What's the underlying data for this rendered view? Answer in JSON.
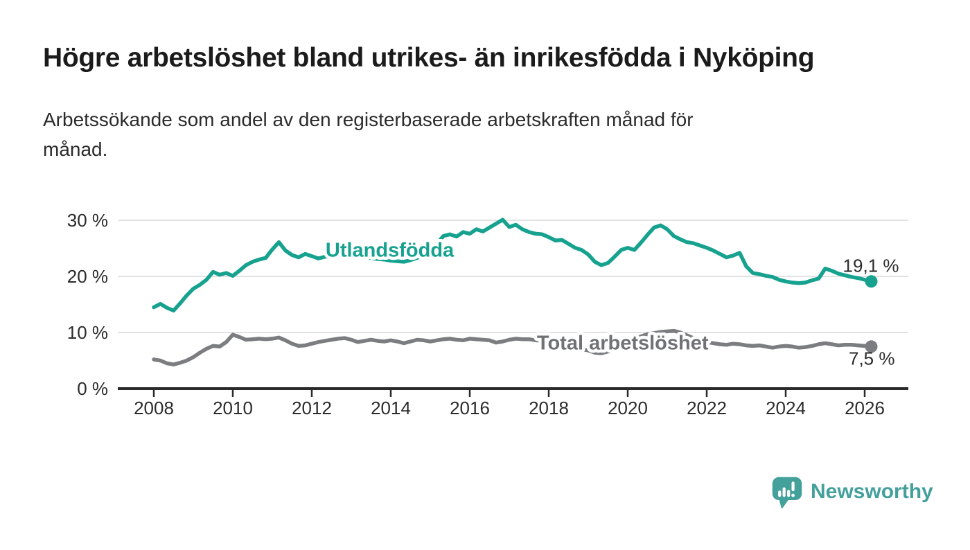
{
  "header": {
    "title": "Högre arbetslöshet bland utrikes- än inrikesfödda i Nyköping",
    "subtitle_line1": "Arbetssökande som andel av den registerbaserade arbetskraften månad för",
    "subtitle_line2": "månad."
  },
  "chart_data": {
    "type": "line",
    "title": "Högre arbetslöshet bland utrikes- än inrikesfödda i Nyköping",
    "subtitle": "Arbetssökande som andel av den registerbaserade arbetskraften månad för månad.",
    "grid": "horizontal",
    "legend": "inline-labels",
    "x_start": 2008,
    "x_step_months": 2,
    "x_ticks": [
      2008,
      2010,
      2012,
      2014,
      2016,
      2018,
      2020,
      2022,
      2024,
      2026
    ],
    "y_ticks": [
      0,
      10,
      20,
      30
    ],
    "y_tick_suffix": " %",
    "ylim": [
      0,
      32
    ],
    "xlim": [
      2007.1,
      2027.2
    ],
    "colors": {
      "background": "#ffffff",
      "grid": "#d9d9d9",
      "axis": "#2b2b2b",
      "tick_text": "#2b2b2b",
      "value_text": "#2b2b2b"
    },
    "series": [
      {
        "name": "Utlandsfödda",
        "slug": "utlandsfodda",
        "color": "#16a28f",
        "label_color": "#16a28f",
        "end_label": "19,1 %",
        "end_label_position": "above",
        "label_pos": {
          "year": 2012.35,
          "pct": 23.5
        },
        "values": [
          14.5,
          15.1,
          14.4,
          13.9,
          15.2,
          16.6,
          17.8,
          18.5,
          19.4,
          20.8,
          20.3,
          20.6,
          20.1,
          21.0,
          22.0,
          22.6,
          23.0,
          23.3,
          24.8,
          26.1,
          24.6,
          23.8,
          23.4,
          24.0,
          23.6,
          23.2,
          23.5,
          23.6,
          23.9,
          24.1,
          23.8,
          23.6,
          23.4,
          23.3,
          23.1,
          23.0,
          22.8,
          22.7,
          22.6,
          22.9,
          23.3,
          23.8,
          24.6,
          25.8,
          27.2,
          27.5,
          27.1,
          27.9,
          27.6,
          28.4,
          28.0,
          28.7,
          29.4,
          30.1,
          28.8,
          29.2,
          28.4,
          27.9,
          27.6,
          27.5,
          27.0,
          26.4,
          26.5,
          25.8,
          25.1,
          24.7,
          23.9,
          22.6,
          22.0,
          22.4,
          23.5,
          24.7,
          25.1,
          24.7,
          26.0,
          27.4,
          28.7,
          29.1,
          28.4,
          27.2,
          26.6,
          26.1,
          25.9,
          25.5,
          25.1,
          24.6,
          24.0,
          23.4,
          23.7,
          24.2,
          21.8,
          20.6,
          20.4,
          20.1,
          19.9,
          19.4,
          19.1,
          18.9,
          18.8,
          18.9,
          19.3,
          19.6,
          21.4,
          21.0,
          20.5,
          20.2,
          19.9,
          19.7,
          19.4,
          19.1
        ]
      },
      {
        "name": "Total arbetslöshet",
        "slug": "total-arbetsloshet",
        "color": "#7c7d80",
        "label_color": "#707174",
        "end_label": "7,5 %",
        "end_label_position": "below",
        "label_pos": {
          "year": 2017.7,
          "pct": 7.0
        },
        "values": [
          5.2,
          5.0,
          4.5,
          4.3,
          4.6,
          5.0,
          5.6,
          6.4,
          7.1,
          7.6,
          7.5,
          8.3,
          9.6,
          9.2,
          8.7,
          8.8,
          8.9,
          8.8,
          8.9,
          9.1,
          8.6,
          8.0,
          7.6,
          7.7,
          8.0,
          8.3,
          8.5,
          8.7,
          8.9,
          9.0,
          8.7,
          8.3,
          8.5,
          8.7,
          8.5,
          8.4,
          8.6,
          8.4,
          8.1,
          8.4,
          8.7,
          8.6,
          8.4,
          8.6,
          8.8,
          8.9,
          8.7,
          8.6,
          8.9,
          8.8,
          8.7,
          8.6,
          8.2,
          8.4,
          8.7,
          8.9,
          8.8,
          8.8,
          8.6,
          8.5,
          8.4,
          8.1,
          7.8,
          7.4,
          7.2,
          7.0,
          6.8,
          6.4,
          6.3,
          6.6,
          7.0,
          7.4,
          8.1,
          8.8,
          9.3,
          9.7,
          9.9,
          10.1,
          10.2,
          10.3,
          10.0,
          9.5,
          9.0,
          8.6,
          8.3,
          8.1,
          7.9,
          7.8,
          8.0,
          7.9,
          7.7,
          7.6,
          7.7,
          7.5,
          7.3,
          7.5,
          7.6,
          7.5,
          7.3,
          7.4,
          7.6,
          7.9,
          8.1,
          7.9,
          7.7,
          7.8,
          7.8,
          7.7,
          7.6,
          7.5
        ]
      }
    ]
  },
  "footer": {
    "brand": "Newsworthy",
    "brand_color": "#43a09b",
    "logo_icon": "bar-chart-speech-bubble-icon"
  }
}
